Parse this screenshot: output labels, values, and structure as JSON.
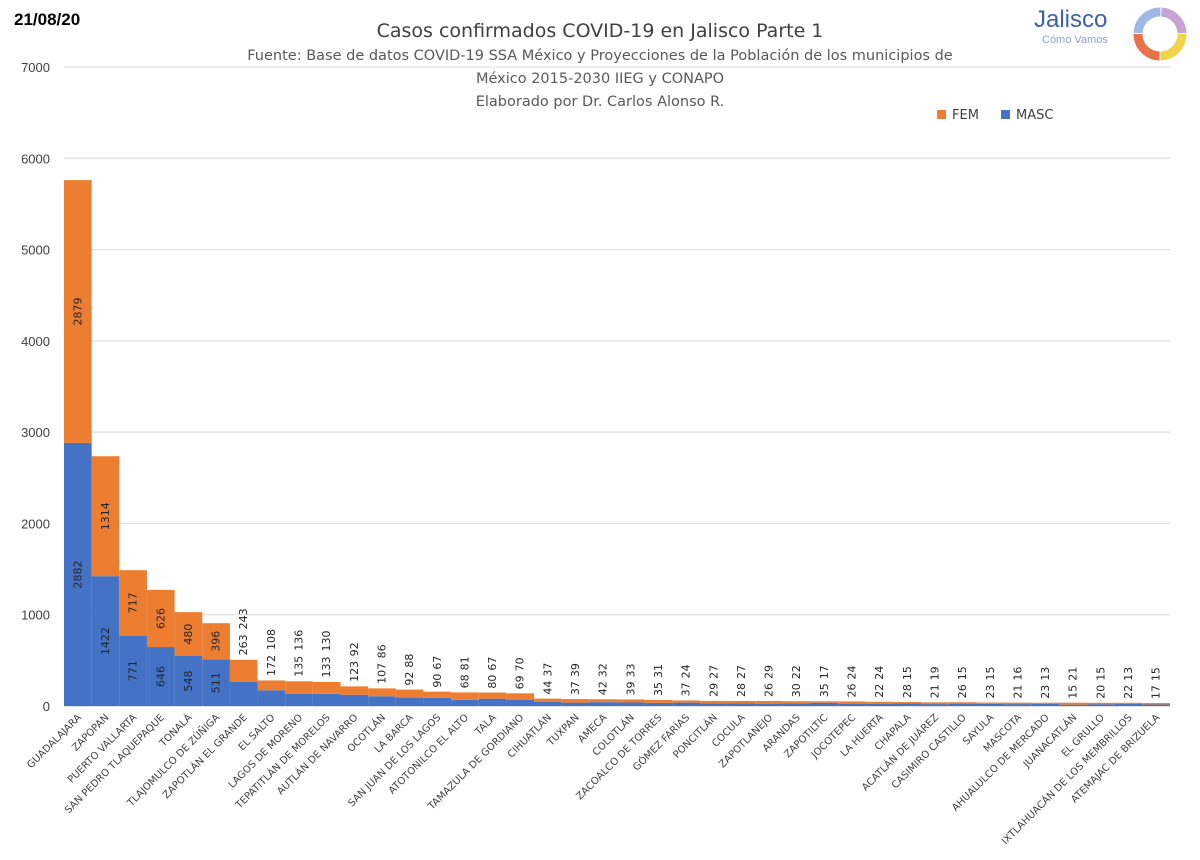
{
  "date_label": "21/08/20",
  "logo": {
    "name": "Jalisco",
    "tagline": "Cómo Vamos"
  },
  "chart_data": {
    "type": "bar",
    "stacked": true,
    "title": "Casos confirmados COVID-19 en Jalisco Parte 1",
    "subtitle_lines": [
      "Fuente: Base de datos COVID-19 SSA México y Proyecciones de la Población de los municipios de",
      "México 2015-2030 IIEG y CONAPO",
      "Elaborado por Dr. Carlos Alonso R."
    ],
    "ylim": [
      0,
      7000
    ],
    "yticks": [
      0,
      1000,
      2000,
      3000,
      4000,
      5000,
      6000,
      7000
    ],
    "grid": true,
    "legend_position": "top-right",
    "categories": [
      "GUADALAJARA",
      "ZAPOPAN",
      "PUERTO VALLARTA",
      "SAN PEDRO TLAQUEPAQUE",
      "TONALÁ",
      "TLAJOMULCO DE ZÚÑIGA",
      "ZAPOTLÁN EL GRANDE",
      "EL SALTO",
      "LAGOS DE MORENO",
      "TEPATITLÁN DE MORELOS",
      "AUTLÁN DE NAVARRO",
      "OCOTLÁN",
      "LA BARCA",
      "SAN JUAN DE LOS LAGOS",
      "ATOTONILCO EL ALTO",
      "TALA",
      "TAMAZULA DE GORDIANO",
      "CIHUATLÁN",
      "TUXPAN",
      "AMECA",
      "COLOTLÁN",
      "ZACOALCO DE TORRES",
      "GÓMEZ FARÍAS",
      "PONCITLÁN",
      "COCULA",
      "ZAPOTLANEJO",
      "ARANDAS",
      "ZAPOTILTIC",
      "JOCOTEPEC",
      "LA HUERTA",
      "CHAPALA",
      "ACATLÁN DE JUÁREZ",
      "CASIMIRO CASTILLO",
      "SAYULA",
      "MASCOTA",
      "AHUALULCO DE MERCADO",
      "JUANACATLÁN",
      "EL GRULLO",
      "IXTLAHUACÁN DE LOS MEMBRILLOS",
      "ATEMAJAC DE BRIZUELA"
    ],
    "series": [
      {
        "name": "MASC",
        "color": "#4472c4",
        "values": [
          2882,
          1422,
          771,
          646,
          548,
          511,
          263,
          172,
          135,
          133,
          123,
          107,
          92,
          90,
          68,
          80,
          69,
          44,
          37,
          42,
          39,
          35,
          37,
          29,
          28,
          26,
          30,
          35,
          26,
          22,
          28,
          21,
          26,
          23,
          21,
          23,
          15,
          20,
          22,
          17
        ]
      },
      {
        "name": "FEM",
        "color": "#ed7d31",
        "values": [
          2879,
          1314,
          717,
          626,
          480,
          396,
          243,
          108,
          136,
          130,
          92,
          86,
          88,
          67,
          81,
          67,
          70,
          37,
          39,
          32,
          33,
          31,
          24,
          27,
          27,
          29,
          22,
          17,
          24,
          24,
          15,
          19,
          15,
          15,
          16,
          13,
          21,
          15,
          13,
          15
        ]
      }
    ]
  }
}
